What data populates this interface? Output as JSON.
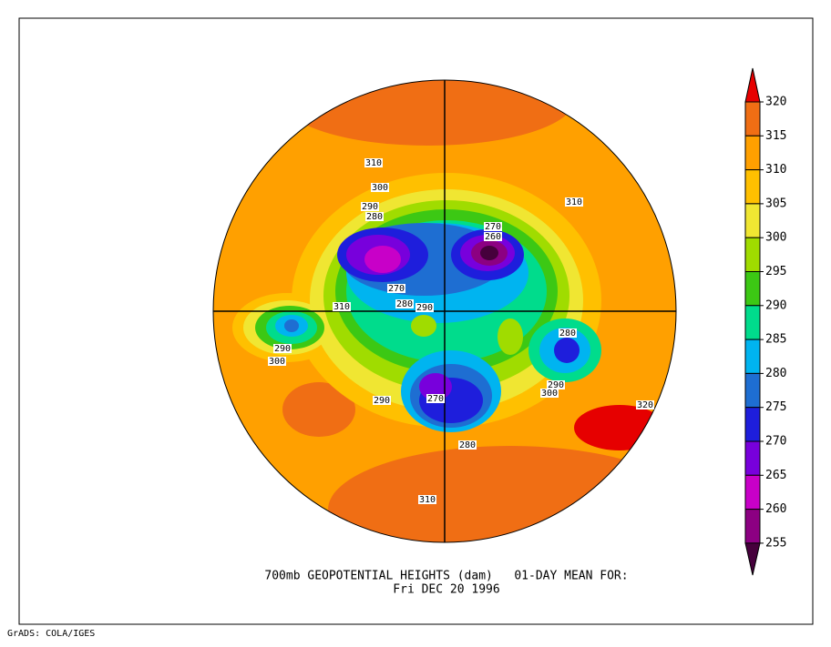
{
  "map": {
    "title": "700mb GEOPOTENTIAL HEIGHTS (dam)   01-DAY MEAN FOR:",
    "subtitle": "Fri DEC 20 1996",
    "contour_labels": [
      310,
      300,
      290,
      280,
      270,
      260,
      270,
      280,
      290,
      310,
      290,
      300,
      280,
      290,
      300,
      310,
      320,
      290,
      270,
      280,
      310
    ],
    "colorbar": {
      "levels": [
        320,
        315,
        310,
        305,
        300,
        295,
        290,
        285,
        280,
        275,
        270,
        265,
        260,
        255
      ],
      "colors": [
        "#e60000",
        "#f06e14",
        "#ffa000",
        "#ffc000",
        "#f0e632",
        "#a0dc00",
        "#3cc814",
        "#00dc8c",
        "#00b4f0",
        "#1e6ed2",
        "#1e1edc",
        "#7800dc",
        "#c800c8",
        "#8c0082",
        "#46003c"
      ]
    }
  },
  "footer": "GrADS: COLA/IGES"
}
